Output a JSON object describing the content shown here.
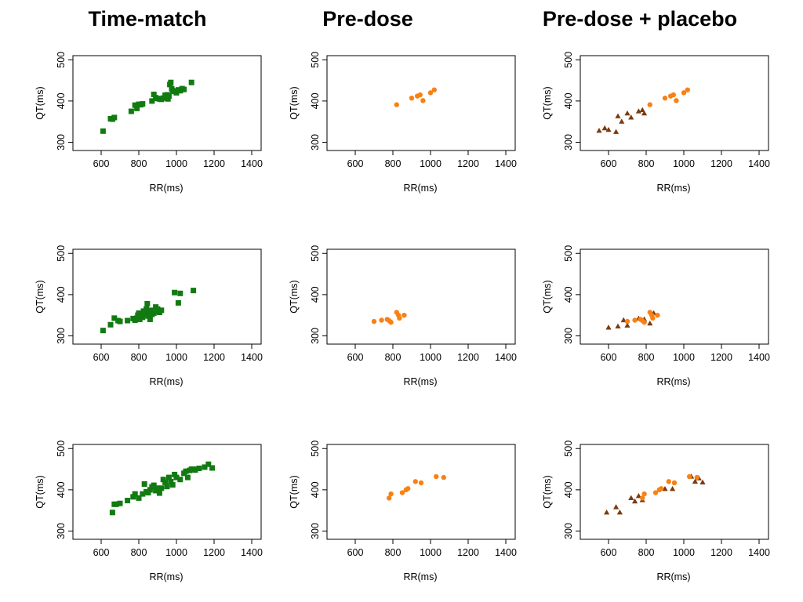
{
  "figure": {
    "column_titles": [
      "Time-match",
      "Pre-dose",
      "Pre-dose + placebo"
    ]
  },
  "colors": {
    "time_match": "#117a11",
    "pre_dose": "#f98114",
    "placebo": "#7a3b10"
  },
  "chart_data": [
    {
      "type": "scatter",
      "row": 1,
      "col": 1,
      "marker": "square",
      "xlabel": "RR(ms)",
      "ylabel": "QT(ms)",
      "xlim": [
        450,
        1450
      ],
      "ylim": [
        280,
        510
      ],
      "xticks": [
        600,
        800,
        1000,
        1200,
        1400
      ],
      "yticks": [
        300,
        400,
        500
      ],
      "series": [
        {
          "color_key": "time_match",
          "marker": "square",
          "points": [
            [
              610,
              327
            ],
            [
              650,
              357
            ],
            [
              660,
              356
            ],
            [
              670,
              360
            ],
            [
              760,
              375
            ],
            [
              780,
              390
            ],
            [
              790,
              382
            ],
            [
              800,
              392
            ],
            [
              810,
              391
            ],
            [
              820,
              393
            ],
            [
              870,
              400
            ],
            [
              880,
              416
            ],
            [
              890,
              408
            ],
            [
              900,
              406
            ],
            [
              910,
              405
            ],
            [
              920,
              404
            ],
            [
              930,
              407
            ],
            [
              940,
              414
            ],
            [
              945,
              410
            ],
            [
              950,
              415
            ],
            [
              955,
              405
            ],
            [
              960,
              412
            ],
            [
              965,
              440
            ],
            [
              970,
              445
            ],
            [
              975,
              430
            ],
            [
              980,
              425
            ],
            [
              990,
              423
            ],
            [
              1000,
              420
            ],
            [
              1010,
              427
            ],
            [
              1020,
              425
            ],
            [
              1030,
              430
            ],
            [
              1040,
              428
            ],
            [
              1080,
              445
            ]
          ]
        }
      ]
    },
    {
      "type": "scatter",
      "row": 1,
      "col": 2,
      "marker": "circle",
      "xlabel": "RR(ms)",
      "ylabel": "QT(ms)",
      "xlim": [
        450,
        1450
      ],
      "ylim": [
        280,
        510
      ],
      "xticks": [
        600,
        800,
        1000,
        1200,
        1400
      ],
      "yticks": [
        300,
        400,
        500
      ],
      "series": [
        {
          "color_key": "pre_dose",
          "marker": "circle",
          "points": [
            [
              820,
              391
            ],
            [
              900,
              407
            ],
            [
              930,
              412
            ],
            [
              945,
              415
            ],
            [
              960,
              401
            ],
            [
              1000,
              420
            ],
            [
              1020,
              427
            ]
          ]
        }
      ]
    },
    {
      "type": "scatter",
      "row": 1,
      "col": 3,
      "marker": "mixed",
      "xlabel": "RR(ms)",
      "ylabel": "QT(ms)",
      "xlim": [
        450,
        1450
      ],
      "ylim": [
        280,
        510
      ],
      "xticks": [
        600,
        800,
        1000,
        1200,
        1400
      ],
      "yticks": [
        300,
        400,
        500
      ],
      "series": [
        {
          "color_key": "placebo",
          "marker": "triangle",
          "points": [
            [
              550,
              328
            ],
            [
              580,
              334
            ],
            [
              600,
              330
            ],
            [
              640,
              325
            ],
            [
              650,
              363
            ],
            [
              670,
              350
            ],
            [
              700,
              370
            ],
            [
              720,
              360
            ],
            [
              760,
              375
            ],
            [
              780,
              378
            ],
            [
              790,
              370
            ]
          ]
        },
        {
          "color_key": "pre_dose",
          "marker": "circle",
          "points": [
            [
              820,
              391
            ],
            [
              900,
              407
            ],
            [
              930,
              412
            ],
            [
              945,
              415
            ],
            [
              960,
              401
            ],
            [
              1000,
              420
            ],
            [
              1020,
              427
            ]
          ]
        }
      ]
    },
    {
      "type": "scatter",
      "row": 2,
      "col": 1,
      "marker": "square",
      "xlabel": "RR(ms)",
      "ylabel": "QT(ms)",
      "xlim": [
        450,
        1450
      ],
      "ylim": [
        280,
        510
      ],
      "xticks": [
        600,
        800,
        1000,
        1200,
        1400
      ],
      "yticks": [
        300,
        400,
        500
      ],
      "series": [
        {
          "color_key": "time_match",
          "marker": "square",
          "points": [
            [
              610,
              313
            ],
            [
              650,
              327
            ],
            [
              670,
              343
            ],
            [
              690,
              337
            ],
            [
              700,
              335
            ],
            [
              740,
              337
            ],
            [
              770,
              342
            ],
            [
              780,
              338
            ],
            [
              790,
              343
            ],
            [
              795,
              350
            ],
            [
              800,
              355
            ],
            [
              805,
              340
            ],
            [
              810,
              348
            ],
            [
              820,
              345
            ],
            [
              825,
              360
            ],
            [
              830,
              352
            ],
            [
              840,
              365
            ],
            [
              845,
              378
            ],
            [
              850,
              348
            ],
            [
              855,
              358
            ],
            [
              860,
              340
            ],
            [
              865,
              362
            ],
            [
              870,
              352
            ],
            [
              880,
              355
            ],
            [
              890,
              370
            ],
            [
              895,
              360
            ],
            [
              900,
              365
            ],
            [
              910,
              357
            ],
            [
              920,
              362
            ],
            [
              990,
              405
            ],
            [
              1010,
              380
            ],
            [
              1020,
              403
            ],
            [
              1090,
              410
            ]
          ]
        }
      ]
    },
    {
      "type": "scatter",
      "row": 2,
      "col": 2,
      "marker": "circle",
      "xlabel": "RR(ms)",
      "ylabel": "QT(ms)",
      "xlim": [
        450,
        1450
      ],
      "ylim": [
        280,
        510
      ],
      "xticks": [
        600,
        800,
        1000,
        1200,
        1400
      ],
      "yticks": [
        300,
        400,
        500
      ],
      "series": [
        {
          "color_key": "pre_dose",
          "marker": "circle",
          "points": [
            [
              700,
              335
            ],
            [
              740,
              338
            ],
            [
              770,
              340
            ],
            [
              780,
              337
            ],
            [
              790,
              333
            ],
            [
              820,
              357
            ],
            [
              830,
              350
            ],
            [
              835,
              343
            ],
            [
              860,
              350
            ]
          ]
        }
      ]
    },
    {
      "type": "scatter",
      "row": 2,
      "col": 3,
      "marker": "mixed",
      "xlabel": "RR(ms)",
      "ylabel": "QT(ms)",
      "xlim": [
        450,
        1450
      ],
      "ylim": [
        280,
        510
      ],
      "xticks": [
        600,
        800,
        1000,
        1200,
        1400
      ],
      "yticks": [
        300,
        400,
        500
      ],
      "series": [
        {
          "color_key": "placebo",
          "marker": "triangle",
          "points": [
            [
              600,
              320
            ],
            [
              650,
              323
            ],
            [
              680,
              338
            ],
            [
              700,
              325
            ],
            [
              760,
              342
            ],
            [
              790,
              340
            ],
            [
              820,
              330
            ],
            [
              840,
              355
            ]
          ]
        },
        {
          "color_key": "pre_dose",
          "marker": "circle",
          "points": [
            [
              700,
              335
            ],
            [
              740,
              338
            ],
            [
              770,
              340
            ],
            [
              780,
              337
            ],
            [
              790,
              333
            ],
            [
              820,
              357
            ],
            [
              830,
              350
            ],
            [
              835,
              343
            ],
            [
              860,
              350
            ]
          ]
        }
      ]
    },
    {
      "type": "scatter",
      "row": 3,
      "col": 1,
      "marker": "square",
      "xlabel": "RR(ms)",
      "ylabel": "QT(ms)",
      "xlim": [
        450,
        1450
      ],
      "ylim": [
        280,
        510
      ],
      "xticks": [
        600,
        800,
        1000,
        1200,
        1400
      ],
      "yticks": [
        300,
        400,
        500
      ],
      "series": [
        {
          "color_key": "time_match",
          "marker": "square",
          "points": [
            [
              660,
              345
            ],
            [
              670,
              365
            ],
            [
              680,
              365
            ],
            [
              700,
              367
            ],
            [
              740,
              374
            ],
            [
              770,
              383
            ],
            [
              780,
              390
            ],
            [
              800,
              380
            ],
            [
              820,
              390
            ],
            [
              830,
              414
            ],
            [
              840,
              395
            ],
            [
              850,
              393
            ],
            [
              860,
              400
            ],
            [
              870,
              407
            ],
            [
              880,
              411
            ],
            [
              890,
              398
            ],
            [
              900,
              404
            ],
            [
              910,
              392
            ],
            [
              920,
              404
            ],
            [
              930,
              425
            ],
            [
              940,
              418
            ],
            [
              950,
              408
            ],
            [
              960,
              430
            ],
            [
              970,
              420
            ],
            [
              980,
              412
            ],
            [
              990,
              437
            ],
            [
              1000,
              430
            ],
            [
              1020,
              425
            ],
            [
              1040,
              440
            ],
            [
              1050,
              445
            ],
            [
              1060,
              430
            ],
            [
              1070,
              447
            ],
            [
              1080,
              450
            ],
            [
              1090,
              450
            ],
            [
              1100,
              448
            ],
            [
              1120,
              452
            ],
            [
              1150,
              455
            ],
            [
              1170,
              462
            ],
            [
              1190,
              453
            ]
          ]
        }
      ]
    },
    {
      "type": "scatter",
      "row": 3,
      "col": 2,
      "marker": "circle",
      "xlabel": "RR(ms)",
      "ylabel": "QT(ms)",
      "xlim": [
        450,
        1450
      ],
      "ylim": [
        280,
        510
      ],
      "xticks": [
        600,
        800,
        1000,
        1200,
        1400
      ],
      "yticks": [
        300,
        400,
        500
      ],
      "series": [
        {
          "color_key": "pre_dose",
          "marker": "circle",
          "points": [
            [
              780,
              380
            ],
            [
              790,
              390
            ],
            [
              850,
              393
            ],
            [
              870,
              400
            ],
            [
              880,
              403
            ],
            [
              920,
              420
            ],
            [
              950,
              417
            ],
            [
              1030,
              432
            ],
            [
              1070,
              430
            ]
          ]
        }
      ]
    },
    {
      "type": "scatter",
      "row": 3,
      "col": 3,
      "marker": "mixed",
      "xlabel": "RR(ms)",
      "ylabel": "QT(ms)",
      "xlim": [
        450,
        1450
      ],
      "ylim": [
        280,
        510
      ],
      "xticks": [
        600,
        800,
        1000,
        1200,
        1400
      ],
      "yticks": [
        300,
        400,
        500
      ],
      "series": [
        {
          "color_key": "placebo",
          "marker": "triangle",
          "points": [
            [
              590,
              345
            ],
            [
              640,
              358
            ],
            [
              660,
              345
            ],
            [
              720,
              380
            ],
            [
              740,
              372
            ],
            [
              760,
              385
            ],
            [
              780,
              375
            ],
            [
              900,
              402
            ],
            [
              940,
              402
            ],
            [
              1040,
              432
            ],
            [
              1060,
              420
            ],
            [
              1080,
              428
            ],
            [
              1100,
              418
            ]
          ]
        },
        {
          "color_key": "pre_dose",
          "marker": "circle",
          "points": [
            [
              780,
              380
            ],
            [
              790,
              390
            ],
            [
              850,
              393
            ],
            [
              870,
              400
            ],
            [
              880,
              403
            ],
            [
              920,
              420
            ],
            [
              950,
              417
            ],
            [
              1030,
              432
            ],
            [
              1070,
              430
            ]
          ]
        }
      ]
    }
  ]
}
